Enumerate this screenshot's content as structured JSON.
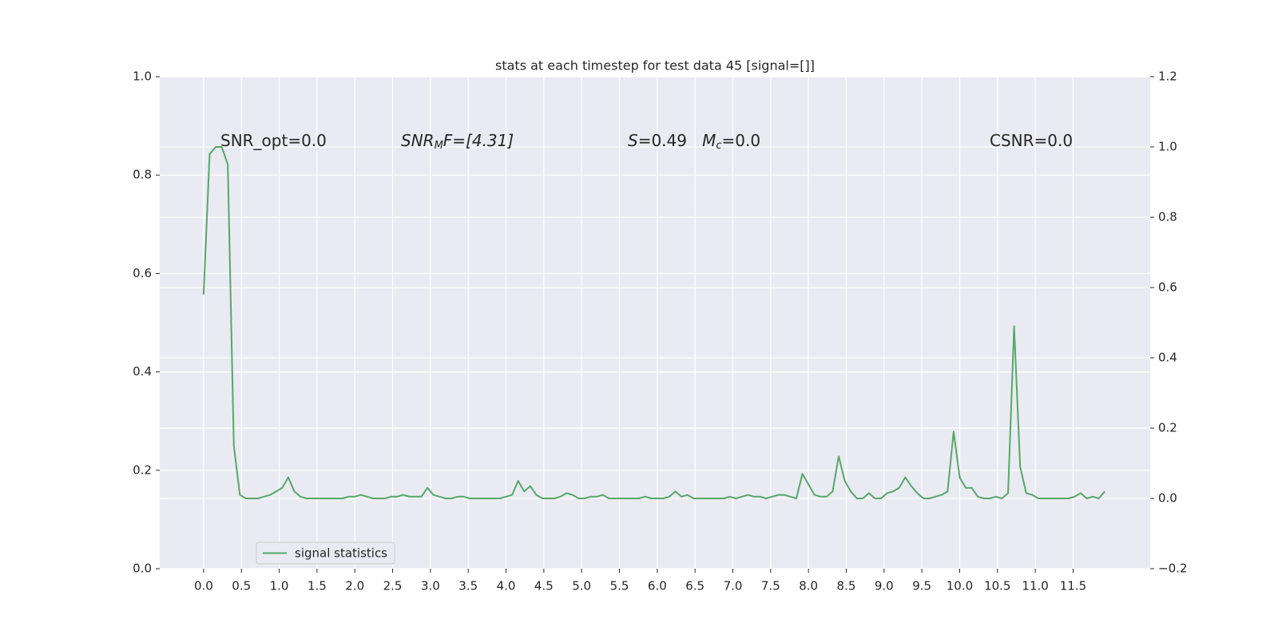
{
  "chart_data": {
    "type": "line",
    "title": "stats at each timestep for test data 45 [signal=[]]",
    "annotations": [
      {
        "parts": [
          "SNR_opt=0.0"
        ]
      },
      {
        "parts": [
          "SNR",
          "M",
          "F=[4.31]"
        ]
      },
      {
        "parts": [
          "S",
          "=0.49   ",
          "M",
          "c",
          "=0.0"
        ]
      },
      {
        "parts": [
          "CSNR=0.0"
        ]
      }
    ],
    "x": [
      0,
      0.08,
      0.16,
      0.24,
      0.32,
      0.4,
      0.48,
      0.56,
      0.64,
      0.72,
      0.8,
      0.88,
      0.96,
      1.04,
      1.12,
      1.2,
      1.28,
      1.36,
      1.44,
      1.52,
      1.6,
      1.68,
      1.76,
      1.84,
      1.92,
      2,
      2.08,
      2.16,
      2.24,
      2.32,
      2.4,
      2.48,
      2.56,
      2.64,
      2.72,
      2.8,
      2.88,
      2.96,
      3.04,
      3.12,
      3.2,
      3.28,
      3.36,
      3.44,
      3.52,
      3.6,
      3.68,
      3.76,
      3.84,
      3.92,
      4,
      4.08,
      4.16,
      4.24,
      4.32,
      4.4,
      4.48,
      4.56,
      4.64,
      4.72,
      4.8,
      4.88,
      4.96,
      5.04,
      5.12,
      5.2,
      5.28,
      5.36,
      5.44,
      5.52,
      5.6,
      5.68,
      5.76,
      5.84,
      5.92,
      6,
      6.08,
      6.16,
      6.24,
      6.32,
      6.4,
      6.48,
      6.56,
      6.64,
      6.72,
      6.8,
      6.88,
      6.96,
      7.04,
      7.12,
      7.2,
      7.28,
      7.36,
      7.44,
      7.52,
      7.6,
      7.68,
      7.76,
      7.84,
      7.92,
      8,
      8.08,
      8.16,
      8.24,
      8.32,
      8.4,
      8.48,
      8.56,
      8.64,
      8.72,
      8.8,
      8.88,
      8.96,
      9.04,
      9.12,
      9.2,
      9.28,
      9.36,
      9.44,
      9.52,
      9.6,
      9.68,
      9.76,
      9.84,
      9.92,
      10,
      10.08,
      10.16,
      10.24,
      10.32,
      10.4,
      10.48,
      10.56,
      10.64,
      10.72,
      10.8,
      10.88,
      10.96,
      11.04,
      11.12,
      11.2,
      11.28,
      11.36,
      11.44,
      11.52,
      11.6,
      11.68,
      11.76,
      11.84,
      11.92
    ],
    "series": [
      {
        "name": "signal statistics",
        "color": "#55a868",
        "axis": "y2",
        "values": [
          0.58,
          0.98,
          1.0,
          1.0,
          0.95,
          0.15,
          0.01,
          0.0,
          0.0,
          0.0,
          0.005,
          0.01,
          0.02,
          0.03,
          0.06,
          0.02,
          0.005,
          0.0,
          0.0,
          0.0,
          0.0,
          0.0,
          0.0,
          0.0,
          0.005,
          0.005,
          0.01,
          0.005,
          0.0,
          0.0,
          0.0,
          0.005,
          0.005,
          0.01,
          0.005,
          0.005,
          0.005,
          0.03,
          0.01,
          0.005,
          0.0,
          0.0,
          0.005,
          0.005,
          0.0,
          0.0,
          0.0,
          0.0,
          0.0,
          0.0,
          0.005,
          0.01,
          0.05,
          0.02,
          0.035,
          0.01,
          0.0,
          0.0,
          0.0,
          0.005,
          0.015,
          0.01,
          0.0,
          0.0,
          0.005,
          0.005,
          0.01,
          0.0,
          0.0,
          0.0,
          0.0,
          0.0,
          0.0,
          0.005,
          0.0,
          0.0,
          0.0,
          0.005,
          0.02,
          0.005,
          0.01,
          0.0,
          0.0,
          0.0,
          0.0,
          0.0,
          0.0,
          0.005,
          0.0,
          0.005,
          0.01,
          0.005,
          0.005,
          0.0,
          0.005,
          0.01,
          0.01,
          0.005,
          0.0,
          0.07,
          0.04,
          0.01,
          0.005,
          0.005,
          0.02,
          0.12,
          0.05,
          0.02,
          0.0,
          0.0,
          0.015,
          0.0,
          0.0,
          0.015,
          0.02,
          0.03,
          0.06,
          0.035,
          0.015,
          0.0,
          0.0,
          0.005,
          0.01,
          0.02,
          0.19,
          0.06,
          0.03,
          0.03,
          0.005,
          0.0,
          0.0,
          0.005,
          0.0,
          0.015,
          0.49,
          0.09,
          0.015,
          0.01,
          0.0,
          0.0,
          0.0,
          0.0,
          0.0,
          0.0,
          0.005,
          0.015,
          0.0,
          0.005,
          0.0,
          0.02
        ]
      }
    ],
    "xlim": [
      -0.58,
      12.52
    ],
    "xticks": [
      {
        "value": 0,
        "label": "0.0"
      },
      0.5,
      {
        "value": 1,
        "label": "1.0"
      },
      1.5,
      {
        "value": 2,
        "label": "2.0"
      },
      2.5,
      {
        "value": 3,
        "label": "3.0"
      },
      3.5,
      {
        "value": 4,
        "label": "4.0"
      },
      4.5,
      {
        "value": 5,
        "label": "5.0"
      },
      5.5,
      {
        "value": 6,
        "label": "6.0"
      },
      6.5,
      {
        "value": 7,
        "label": "7.0"
      },
      7.5,
      {
        "value": 8,
        "label": "8.0"
      },
      8.5,
      {
        "value": 9,
        "label": "9.0"
      },
      9.5,
      {
        "value": 10,
        "label": "10.0"
      },
      10.5,
      {
        "value": 11,
        "label": "11.0"
      },
      11.5
    ],
    "ylim": [
      0,
      1
    ],
    "yticks": [
      {
        "value": 0,
        "label": "0.0"
      },
      0.2,
      0.4,
      0.6,
      0.8,
      {
        "value": 1,
        "label": "1.0"
      }
    ],
    "y2lim": [
      -0.2,
      1.2
    ],
    "y2ticks": [
      {
        "value": -0.2,
        "label": "−0.2"
      },
      {
        "value": 0,
        "label": "0.0"
      },
      0.2,
      0.4,
      0.6,
      0.8,
      {
        "value": 1,
        "label": "1.0"
      },
      1.2
    ],
    "grid": true,
    "legend": "lower left"
  }
}
